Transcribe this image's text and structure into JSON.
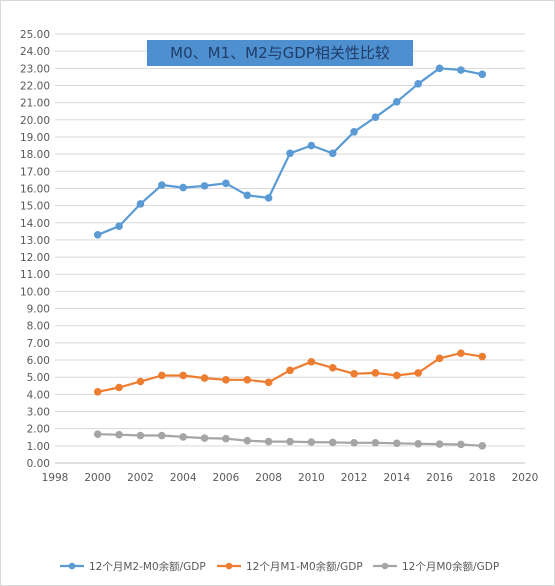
{
  "chart_data": {
    "type": "line",
    "title": "M0、M1、M2与GDP相关性比较",
    "title_bg_color": "#4e8fd0",
    "xlabel": "",
    "ylabel": "",
    "xlim": [
      1998,
      2020
    ],
    "x_ticks": [
      1998,
      2000,
      2002,
      2004,
      2006,
      2008,
      2010,
      2012,
      2014,
      2016,
      2018,
      2020
    ],
    "ylim": [
      0,
      25
    ],
    "y_tick_step": 1,
    "y_tick_decimals": 2,
    "grid": true,
    "legend_position": "bottom",
    "x": [
      2000,
      2001,
      2002,
      2003,
      2004,
      2005,
      2006,
      2007,
      2008,
      2009,
      2010,
      2011,
      2012,
      2013,
      2014,
      2015,
      2016,
      2017,
      2018
    ],
    "series": [
      {
        "name": "12个月M2-M0余额/GDP",
        "color": "#5b9bd5",
        "values": [
          13.3,
          13.8,
          15.1,
          16.2,
          16.05,
          16.15,
          16.3,
          15.6,
          15.45,
          18.05,
          18.5,
          18.05,
          19.3,
          20.15,
          21.05,
          22.1,
          23.0,
          22.9,
          22.65
        ]
      },
      {
        "name": "12个月M1-M0余额/GDP",
        "color": "#ed7d31",
        "values": [
          4.15,
          4.4,
          4.75,
          5.1,
          5.1,
          4.95,
          4.85,
          4.85,
          4.7,
          5.4,
          5.9,
          5.55,
          5.2,
          5.25,
          5.1,
          5.25,
          6.1,
          6.4,
          6.2
        ]
      },
      {
        "name": "12个月M0余额/GDP",
        "color": "#a5a5a5",
        "values": [
          1.68,
          1.65,
          1.6,
          1.6,
          1.52,
          1.45,
          1.42,
          1.3,
          1.25,
          1.25,
          1.22,
          1.2,
          1.18,
          1.18,
          1.15,
          1.12,
          1.1,
          1.08,
          1.0
        ]
      }
    ]
  }
}
